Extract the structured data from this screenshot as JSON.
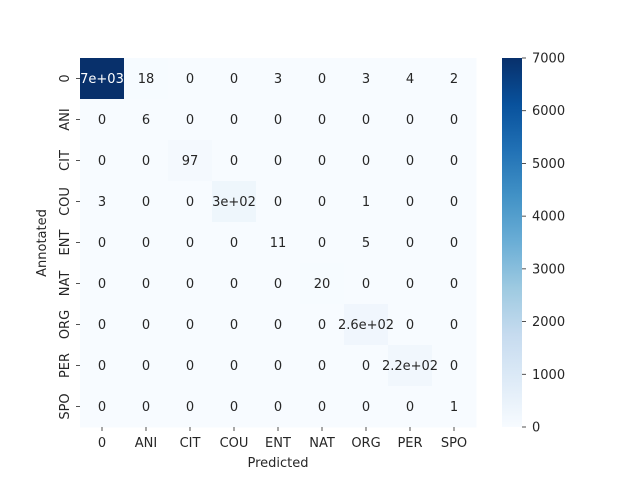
{
  "chart_data": {
    "type": "heatmap",
    "title": "",
    "xlabel": "Predicted",
    "ylabel": "Annotated",
    "x_categories": [
      "0",
      "ANI",
      "CIT",
      "COU",
      "ENT",
      "NAT",
      "ORG",
      "PER",
      "SPO"
    ],
    "y_categories": [
      "0",
      "ANI",
      "CIT",
      "COU",
      "ENT",
      "NAT",
      "ORG",
      "PER",
      "SPO"
    ],
    "values": [
      [
        7000,
        18,
        0,
        0,
        3,
        0,
        3,
        4,
        2
      ],
      [
        0,
        6,
        0,
        0,
        0,
        0,
        0,
        0,
        0
      ],
      [
        0,
        0,
        97,
        0,
        0,
        0,
        0,
        0,
        0
      ],
      [
        3,
        0,
        0,
        300,
        0,
        0,
        1,
        0,
        0
      ],
      [
        0,
        0,
        0,
        0,
        11,
        0,
        5,
        0,
        0
      ],
      [
        0,
        0,
        0,
        0,
        0,
        20,
        0,
        0,
        0
      ],
      [
        0,
        0,
        0,
        0,
        0,
        0,
        260,
        0,
        0
      ],
      [
        0,
        0,
        0,
        0,
        0,
        0,
        0,
        220,
        0
      ],
      [
        0,
        0,
        0,
        0,
        0,
        0,
        0,
        0,
        1
      ]
    ],
    "cell_labels": [
      [
        "7e+03",
        "18",
        "0",
        "0",
        "3",
        "0",
        "3",
        "4",
        "2"
      ],
      [
        "0",
        "6",
        "0",
        "0",
        "0",
        "0",
        "0",
        "0",
        "0"
      ],
      [
        "0",
        "0",
        "97",
        "0",
        "0",
        "0",
        "0",
        "0",
        "0"
      ],
      [
        "3",
        "0",
        "0",
        "3e+02",
        "0",
        "0",
        "1",
        "0",
        "0"
      ],
      [
        "0",
        "0",
        "0",
        "0",
        "11",
        "0",
        "5",
        "0",
        "0"
      ],
      [
        "0",
        "0",
        "0",
        "0",
        "0",
        "20",
        "0",
        "0",
        "0"
      ],
      [
        "0",
        "0",
        "0",
        "0",
        "0",
        "0",
        "2.6e+02",
        "0",
        "0"
      ],
      [
        "0",
        "0",
        "0",
        "0",
        "0",
        "0",
        "0",
        "2.2e+02",
        "0"
      ],
      [
        "0",
        "0",
        "0",
        "0",
        "0",
        "0",
        "0",
        "0",
        "1"
      ]
    ],
    "colorbar": {
      "min": 0,
      "max": 7000,
      "ticks": [
        0,
        1000,
        2000,
        3000,
        4000,
        5000,
        6000,
        7000
      ],
      "colormap": "Blues"
    },
    "colors": {
      "low": "#f7fbff",
      "high": "#08306b",
      "text_dark": "#262626",
      "text_light": "#ffffff"
    }
  }
}
